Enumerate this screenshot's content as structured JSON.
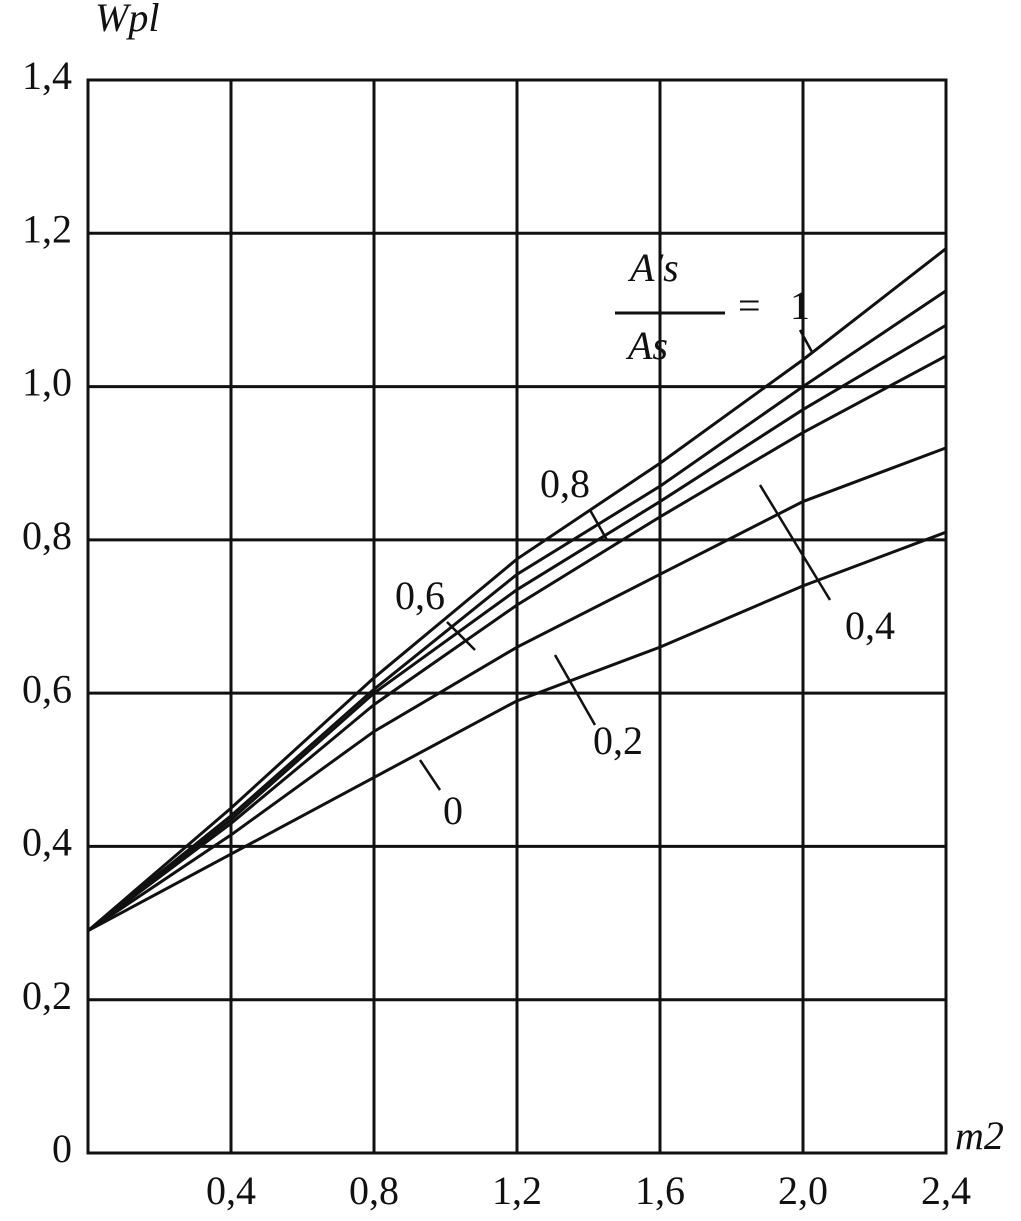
{
  "chart_data": {
    "type": "line",
    "y_label": "Wpl",
    "x_label": "m2",
    "ratio_label": {
      "numerator": "A′s",
      "denominator": "As",
      "equals": "="
    },
    "x": [
      0,
      0.4,
      0.8,
      1.2,
      1.6,
      2.0,
      2.4
    ],
    "series": [
      {
        "name": "0",
        "color": "#111111",
        "values": [
          0.29,
          0.39,
          0.49,
          0.59,
          0.66,
          0.74,
          0.81
        ]
      },
      {
        "name": "0,2",
        "color": "#111111",
        "values": [
          0.29,
          0.415,
          0.55,
          0.66,
          0.755,
          0.85,
          0.92
        ]
      },
      {
        "name": "0,4",
        "color": "#111111",
        "values": [
          0.29,
          0.43,
          0.585,
          0.715,
          0.83,
          0.94,
          1.04
        ]
      },
      {
        "name": "0,6",
        "color": "#111111",
        "values": [
          0.29,
          0.435,
          0.6,
          0.735,
          0.85,
          0.97,
          1.08
        ]
      },
      {
        "name": "0,8",
        "color": "#111111",
        "values": [
          0.29,
          0.44,
          0.605,
          0.755,
          0.87,
          1.0,
          1.125
        ]
      },
      {
        "name": "1",
        "color": "#111111",
        "values": [
          0.29,
          0.45,
          0.62,
          0.775,
          0.9,
          1.035,
          1.18
        ]
      }
    ],
    "xlim": [
      0,
      2.4
    ],
    "ylim": [
      0,
      1.4
    ],
    "xticks": [
      {
        "value": 0.4,
        "label": "0,4"
      },
      {
        "value": 0.8,
        "label": "0,8"
      },
      {
        "value": 1.2,
        "label": "1,2"
      },
      {
        "value": 1.6,
        "label": "1,6"
      },
      {
        "value": 2.0,
        "label": "2,0"
      },
      {
        "value": 2.4,
        "label": "2,4"
      }
    ],
    "yticks": [
      0,
      {
        "value": 0.2,
        "label": "0,2"
      },
      {
        "value": 0.4,
        "label": "0,4"
      },
      {
        "value": 0.6,
        "label": "0,6"
      },
      {
        "value": 0.8,
        "label": "0,8"
      },
      {
        "value": 1.0,
        "label": "1,0"
      },
      {
        "value": 1.2,
        "label": "1,2"
      },
      {
        "value": 1.4,
        "label": "1,4"
      }
    ],
    "grid": true
  }
}
